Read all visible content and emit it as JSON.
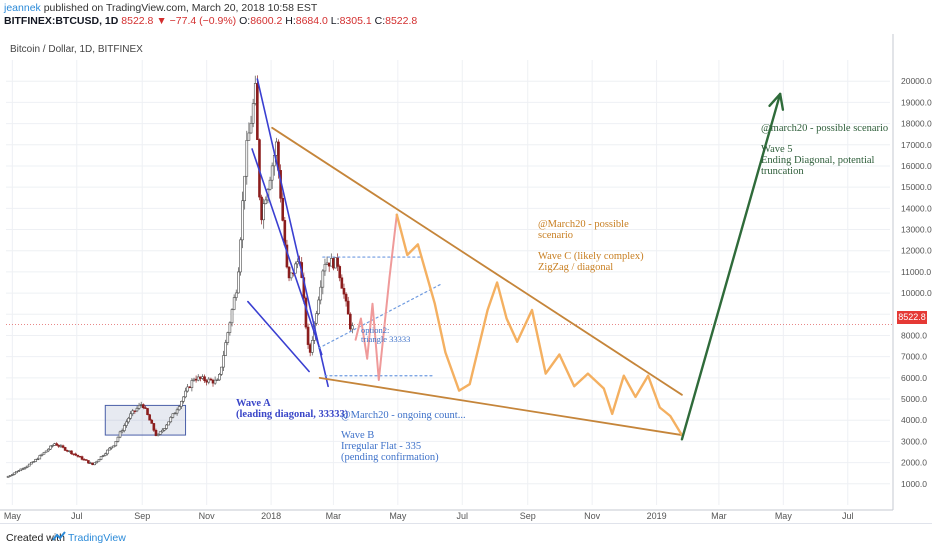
{
  "header": {
    "user": "jeannek",
    "published": "published on TradingView.com, March 20, 2018 10:58 EST",
    "symbol": "BITFINEX:BTCUSD, 1D",
    "last": "8522.8",
    "change_arrow": "▼",
    "change": "−77.4 (−0.9%)",
    "o_label": "O:",
    "o": "8600.2",
    "h_label": "H:",
    "h": "8684.0",
    "l_label": "L:",
    "l": "8305.1",
    "c_label": "C:",
    "c": "8522.8"
  },
  "symbol_label": "Bitcoin / Dollar, 1D, BITFINEX",
  "price_tag": "8522.8",
  "footer": {
    "created": "Created with",
    "brand": "TradingView"
  },
  "annotations": {
    "wave_a_1": "Wave A",
    "wave_a_2": "(leading diagonal, 33333)",
    "option2_1": "option2:",
    "option2_2": "triangle 33333",
    "march20_count": "@March20 - ongoing count...",
    "wave_b_1": "Wave B",
    "wave_b_2": "Irregular Flat - 335",
    "wave_b_3": "(pending confirmation)",
    "wave_c_1": "@March20 - possible",
    "wave_c_2": "scenario",
    "wave_c_3": "Wave C (likely complex)",
    "wave_c_4": "ZigZag / diagonal",
    "wave5_1": "@march20 - possible scenario",
    "wave5_2": "Wave 5",
    "wave5_3": "Ending Diagonal, potential",
    "wave5_4": "truncation"
  },
  "colors": {
    "up": "#4a4a4a",
    "down": "#8b1d1d",
    "blue_line": "#3a3fd1",
    "trendline": "#c5853a",
    "scenario": "#f4b061",
    "pink": "#ef9a9a",
    "dotted": "#6f9be0",
    "green": "#2f6b3a",
    "price_line": "#e06060"
  },
  "chart_data": {
    "type": "candlestick",
    "title": "Bitcoin / Dollar, 1D, BITFINEX",
    "ylim": [
      0,
      21000
    ],
    "y_ticks": [
      1000,
      2000,
      3000,
      4000,
      5000,
      6000,
      7000,
      8000,
      9000,
      10000,
      11000,
      12000,
      13000,
      14000,
      15000,
      16000,
      17000,
      18000,
      19000,
      20000
    ],
    "y_tick_labels": [
      "1000.0",
      "2000.0",
      "3000.0",
      "4000.0",
      "5000.0",
      "6000.0",
      "7000.0",
      "8000.0",
      "9000.0",
      "10000.0",
      "11000.0",
      "12000.0",
      "13000.0",
      "14000.0",
      "15000.0",
      "16000.0",
      "17000.0",
      "18000.0",
      "19000.0",
      "20000.0"
    ],
    "x_range": [
      "2017-04-25",
      "2019-08-10"
    ],
    "x_ticks": [
      "2017-05-01",
      "2017-07-01",
      "2017-09-01",
      "2017-11-01",
      "2018-01-01",
      "2018-03-01",
      "2018-05-01",
      "2018-07-01",
      "2018-09-01",
      "2018-11-01",
      "2019-01-01",
      "2019-03-01",
      "2019-05-01",
      "2019-07-01"
    ],
    "x_tick_labels": [
      "May",
      "Jul",
      "Sep",
      "Nov",
      "2018",
      "Mar",
      "May",
      "Jul",
      "Sep",
      "Nov",
      "2019",
      "Mar",
      "May",
      "Jul"
    ],
    "last_price": 8522.8,
    "price_anchors": [
      [
        "2017-04-25",
        1300
      ],
      [
        "2017-05-20",
        2000
      ],
      [
        "2017-06-10",
        2900
      ],
      [
        "2017-06-25",
        2500
      ],
      [
        "2017-07-16",
        1900
      ],
      [
        "2017-08-05",
        2850
      ],
      [
        "2017-08-20",
        4200
      ],
      [
        "2017-09-01",
        4800
      ],
      [
        "2017-09-15",
        3200
      ],
      [
        "2017-10-01",
        4300
      ],
      [
        "2017-10-20",
        6000
      ],
      [
        "2017-11-12",
        5800
      ],
      [
        "2017-11-30",
        10500
      ],
      [
        "2017-12-08",
        16500
      ],
      [
        "2017-12-17",
        19500
      ],
      [
        "2017-12-22",
        13500
      ],
      [
        "2018-01-06",
        17000
      ],
      [
        "2018-01-17",
        10500
      ],
      [
        "2018-01-28",
        11700
      ],
      [
        "2018-02-06",
        6900
      ],
      [
        "2018-02-20",
        11500
      ],
      [
        "2018-03-05",
        11400
      ],
      [
        "2018-03-18",
        8200
      ],
      [
        "2018-03-20",
        8522.8
      ]
    ]
  },
  "drawing_data": {
    "wave_a_lines": [
      [
        [
          "2017-12-19",
          20100
        ],
        [
          "2018-02-24",
          5600
        ]
      ],
      [
        [
          "2017-12-14",
          16800
        ],
        [
          "2018-02-18",
          7100
        ]
      ],
      [
        [
          "2017-12-10",
          9600
        ],
        [
          "2018-02-06",
          6300
        ]
      ]
    ],
    "trend_upper": [
      [
        "2018-01-02",
        17800
      ],
      [
        "2019-01-25",
        5200
      ]
    ],
    "trend_lower": [
      [
        "2018-02-16",
        6000
      ],
      [
        "2019-01-25",
        3300
      ]
    ],
    "dotted_upper": [
      [
        "2018-02-19",
        11700
      ],
      [
        "2018-05-23",
        11700
      ]
    ],
    "dotted_lower": [
      [
        "2018-02-21",
        6100
      ],
      [
        "2018-06-04",
        6100
      ]
    ],
    "dotted_diag": [
      [
        "2018-02-15",
        7400
      ],
      [
        "2018-06-10",
        10400
      ]
    ],
    "pink_path": [
      [
        "2018-03-22",
        7800
      ],
      [
        "2018-03-27",
        8800
      ],
      [
        "2018-04-02",
        6900
      ],
      [
        "2018-04-07",
        9500
      ],
      [
        "2018-04-13",
        5900
      ],
      [
        "2018-04-23",
        10700
      ],
      [
        "2018-04-30",
        13700
      ]
    ],
    "orange_path": [
      [
        "2018-04-30",
        13700
      ],
      [
        "2018-05-10",
        11800
      ],
      [
        "2018-05-20",
        12300
      ],
      [
        "2018-06-05",
        9500
      ],
      [
        "2018-06-15",
        7200
      ],
      [
        "2018-06-28",
        5400
      ],
      [
        "2018-07-08",
        5700
      ],
      [
        "2018-07-25",
        9200
      ],
      [
        "2018-08-03",
        10500
      ],
      [
        "2018-08-12",
        8800
      ],
      [
        "2018-08-22",
        7700
      ],
      [
        "2018-09-05",
        9200
      ],
      [
        "2018-09-18",
        6200
      ],
      [
        "2018-10-01",
        7100
      ],
      [
        "2018-10-15",
        5600
      ],
      [
        "2018-10-28",
        6200
      ],
      [
        "2018-11-12",
        5500
      ],
      [
        "2018-11-20",
        4300
      ],
      [
        "2018-12-01",
        6100
      ],
      [
        "2018-12-12",
        5100
      ],
      [
        "2018-12-24",
        6100
      ],
      [
        "2019-01-04",
        4600
      ],
      [
        "2019-01-14",
        4200
      ],
      [
        "2019-01-25",
        3300
      ]
    ],
    "green_arrow": [
      [
        "2019-01-25",
        3100
      ],
      [
        "2019-04-28",
        19400
      ]
    ],
    "box": [
      [
        "2017-07-28",
        4700
      ],
      [
        "2017-10-12",
        3300
      ]
    ]
  }
}
